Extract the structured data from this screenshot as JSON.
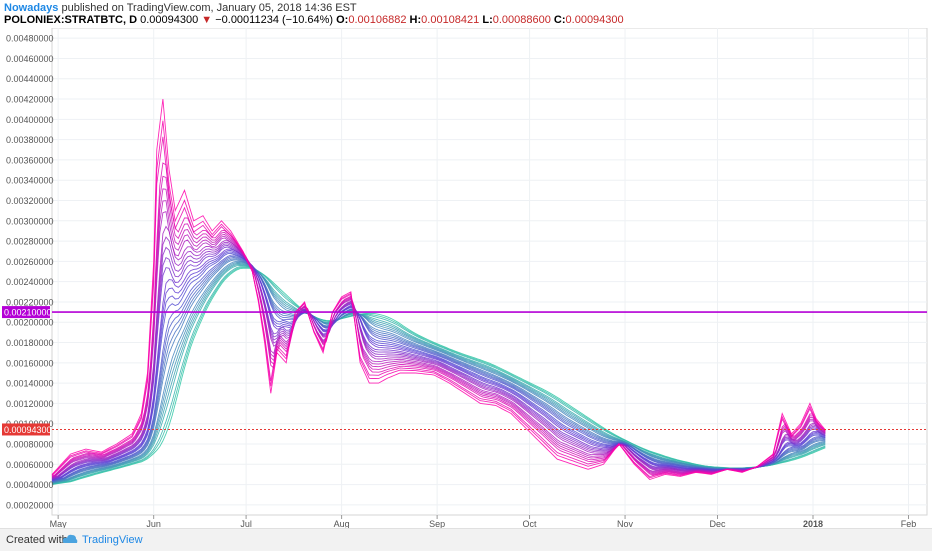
{
  "header": {
    "author": "Nowadays",
    "published_text": "published on TradingView.com, January 05, 2018 14:36 EST",
    "symbol": "POLONIEX:STRATBTC, D",
    "last": "0.00094300",
    "change_arrow": "▼",
    "change": "−0.00011234 (−10.64%)",
    "open_label": "O:",
    "open": "0.00106882",
    "high_label": "H:",
    "high": "0.00108421",
    "low_label": "L:",
    "low": "0.00088600",
    "close_label": "C:",
    "close": "0.00094300"
  },
  "footer": {
    "created_with": "Created with",
    "brand": "TradingView",
    "logo_icon": "tradingview-cloud-icon"
  },
  "colors": {
    "horizontal_line": "#b400d6",
    "price_line": "#e53935",
    "ribbon_fast": "#ff00aa",
    "ribbon_mid": "#5a3fd6",
    "ribbon_slow": "#2ec7a4"
  },
  "chart_data": {
    "type": "line",
    "description_of_series": "Multiple moving averages (ribbon) of STRAT/BTC daily price",
    "y_ticks": [
      "0.00480000",
      "0.00460000",
      "0.00440000",
      "0.00420000",
      "0.00400000",
      "0.00380000",
      "0.00360000",
      "0.00340000",
      "0.00320000",
      "0.00300000",
      "0.00280000",
      "0.00260000",
      "0.00240000",
      "0.00220000",
      "0.00200000",
      "0.00180000",
      "0.00160000",
      "0.00140000",
      "0.00120000",
      "0.00100000",
      "0.00080000",
      "0.00060000",
      "0.00040000",
      "0.00020000"
    ],
    "y_tick_values": [
      0.0048,
      0.0046,
      0.0044,
      0.0042,
      0.004,
      0.0038,
      0.0036,
      0.0034,
      0.0032,
      0.003,
      0.0028,
      0.0026,
      0.0024,
      0.0022,
      0.002,
      0.0018,
      0.0016,
      0.0014,
      0.0012,
      0.001,
      0.0008,
      0.0006,
      0.0004,
      0.0002
    ],
    "ylim": [
      0.0001,
      0.0049
    ],
    "x_ticks": [
      "May",
      "Jun",
      "Jul",
      "Aug",
      "Sep",
      "Oct",
      "Nov",
      "Dec",
      "2018",
      "Feb"
    ],
    "x_tick_dates": [
      "2017-05-01",
      "2017-06-01",
      "2017-07-01",
      "2017-08-01",
      "2017-09-01",
      "2017-10-01",
      "2017-11-01",
      "2017-12-01",
      "2018-01-01",
      "2018-02-01"
    ],
    "xlim": [
      "2017-04-29",
      "2018-02-07"
    ],
    "horizontal_line": {
      "value": 0.0021,
      "label": "0.00210000"
    },
    "last_price_line": {
      "value": 0.000943,
      "label": "0.00094300"
    },
    "ribbon_count": 30,
    "fast": {
      "x": [
        "2017-04-29",
        "2017-05-05",
        "2017-05-10",
        "2017-05-15",
        "2017-05-20",
        "2017-05-25",
        "2017-05-28",
        "2017-05-30",
        "2017-06-01",
        "2017-06-02",
        "2017-06-04",
        "2017-06-06",
        "2017-06-08",
        "2017-06-11",
        "2017-06-14",
        "2017-06-17",
        "2017-06-20",
        "2017-06-23",
        "2017-06-26",
        "2017-06-30",
        "2017-07-03",
        "2017-07-05",
        "2017-07-07",
        "2017-07-09",
        "2017-07-11",
        "2017-07-14",
        "2017-07-17",
        "2017-07-20",
        "2017-07-23",
        "2017-07-26",
        "2017-07-29",
        "2017-08-01",
        "2017-08-04",
        "2017-08-07",
        "2017-08-10",
        "2017-08-13",
        "2017-08-16",
        "2017-08-20",
        "2017-08-25",
        "2017-08-31",
        "2017-09-05",
        "2017-09-10",
        "2017-09-15",
        "2017-09-20",
        "2017-09-25",
        "2017-09-30",
        "2017-10-05",
        "2017-10-10",
        "2017-10-15",
        "2017-10-20",
        "2017-10-25",
        "2017-10-30",
        "2017-11-04",
        "2017-11-09",
        "2017-11-14",
        "2017-11-19",
        "2017-11-24",
        "2017-11-29",
        "2017-12-04",
        "2017-12-09",
        "2017-12-14",
        "2017-12-19",
        "2017-12-22",
        "2017-12-25",
        "2017-12-28",
        "2017-12-31",
        "2018-01-02",
        "2018-01-05"
      ],
      "y": [
        0.0005,
        0.0007,
        0.00075,
        0.00072,
        0.0008,
        0.0009,
        0.0011,
        0.0015,
        0.0026,
        0.0037,
        0.0042,
        0.0035,
        0.0031,
        0.0033,
        0.003,
        0.00305,
        0.0029,
        0.003,
        0.0029,
        0.0027,
        0.0025,
        0.0022,
        0.0018,
        0.0013,
        0.0017,
        0.0016,
        0.0021,
        0.0022,
        0.0019,
        0.0017,
        0.0021,
        0.00225,
        0.0023,
        0.0016,
        0.0014,
        0.0014,
        0.00145,
        0.0015,
        0.0015,
        0.00148,
        0.0014,
        0.0013,
        0.0012,
        0.00118,
        0.0011,
        0.00095,
        0.0008,
        0.00065,
        0.0006,
        0.00055,
        0.0006,
        0.0008,
        0.0006,
        0.00045,
        0.0005,
        0.00048,
        0.00052,
        0.0005,
        0.00055,
        0.00052,
        0.00058,
        0.0007,
        0.0011,
        0.0009,
        0.001,
        0.0012,
        0.00105,
        0.00094
      ]
    },
    "slow": {
      "x": [
        "2017-04-29",
        "2017-05-10",
        "2017-05-20",
        "2017-05-28",
        "2017-06-03",
        "2017-06-08",
        "2017-06-13",
        "2017-06-18",
        "2017-06-23",
        "2017-06-28",
        "2017-07-03",
        "2017-07-10",
        "2017-07-17",
        "2017-07-24",
        "2017-07-31",
        "2017-08-07",
        "2017-08-14",
        "2017-08-21",
        "2017-08-28",
        "2017-09-05",
        "2017-09-15",
        "2017-09-25",
        "2017-10-05",
        "2017-10-15",
        "2017-10-25",
        "2017-11-04",
        "2017-11-14",
        "2017-11-24",
        "2017-12-04",
        "2017-12-14",
        "2017-12-24",
        "2018-01-05"
      ],
      "y": [
        0.0004,
        0.0005,
        0.00058,
        0.00065,
        0.0009,
        0.0016,
        0.002,
        0.0023,
        0.0025,
        0.00255,
        0.0025,
        0.0023,
        0.0021,
        0.002,
        0.00205,
        0.0021,
        0.00205,
        0.0019,
        0.0018,
        0.0017,
        0.0016,
        0.00145,
        0.0013,
        0.0011,
        0.0009,
        0.00075,
        0.00065,
        0.00058,
        0.00056,
        0.00058,
        0.00065,
        0.0008
      ]
    }
  }
}
